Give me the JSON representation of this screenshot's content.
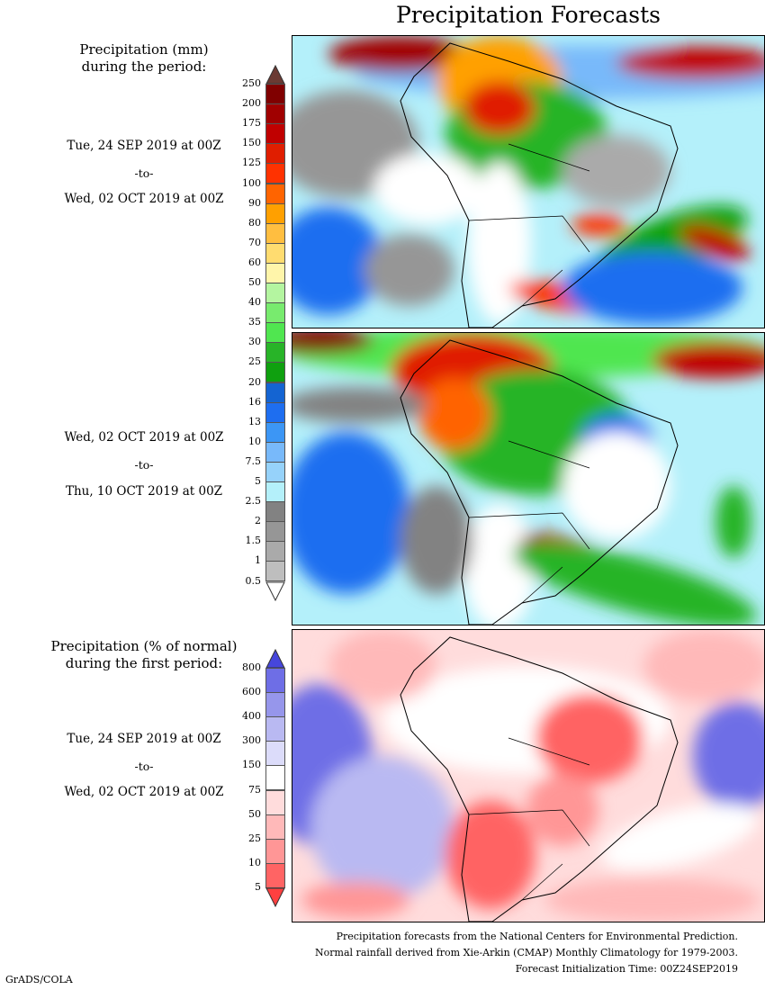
{
  "title": "Precipitation Forecasts",
  "mm_legend": {
    "heading": [
      "Precipitation (mm)",
      "during the period:"
    ],
    "labels": [
      "250",
      "200",
      "175",
      "150",
      "125",
      "100",
      "90",
      "80",
      "70",
      "60",
      "50",
      "40",
      "35",
      "30",
      "25",
      "20",
      "16",
      "13",
      "10",
      "7.5",
      "5",
      "2.5",
      "2",
      "1.5",
      "1",
      "0.5"
    ],
    "colors": [
      "#800000",
      "#a00000",
      "#c00000",
      "#e01e00",
      "#ff3200",
      "#ff6400",
      "#ffa000",
      "#ffbe40",
      "#ffdc70",
      "#fff5aa",
      "#b4f5a0",
      "#78eb6e",
      "#50e650",
      "#28b428",
      "#0fa00f",
      "#1464d2",
      "#1e6ef0",
      "#3c96f5",
      "#78b9fa",
      "#96d2fa",
      "#b4f0fa",
      "#828282",
      "#969696",
      "#aaaaaa",
      "#bebebe"
    ],
    "top_arrow_color": "#6b3a33",
    "bottom_arrow_color": "#ffffff"
  },
  "pct_legend": {
    "heading": [
      "Precipitation (% of normal)",
      "during the first period:"
    ],
    "labels": [
      "800",
      "600",
      "400",
      "300",
      "150",
      "75",
      "50",
      "25",
      "10",
      "5"
    ],
    "colors": [
      "#6e6ee6",
      "#9696eb",
      "#b9b9f2",
      "#dcdcfa",
      "#ffffff",
      "#ffdcdc",
      "#ffb9b9",
      "#ff9696",
      "#ff6464"
    ],
    "top_arrow_color": "#4646dc",
    "bottom_arrow_color": "#ff4040"
  },
  "periods": [
    {
      "start": "Tue, 24 SEP 2019 at 00Z",
      "sep": "-to-",
      "end": "Wed, 02 OCT 2019 at 00Z"
    },
    {
      "start": "Wed, 02 OCT 2019 at 00Z",
      "sep": "-to-",
      "end": "Thu, 10 OCT 2019 at 00Z"
    },
    {
      "start": "Tue, 24 SEP 2019 at 00Z",
      "sep": "-to-",
      "end": "Wed, 02 OCT 2019 at 00Z"
    }
  ],
  "footer": {
    "line1": "Precipitation forecasts from the National Centers for Environmental Prediction.",
    "line2": "Normal rainfall derived from Xie-Arkin (CMAP) Monthly Climatology for 1979-2003.",
    "line3": "Forecast Initialization Time: 00Z24SEP2019"
  },
  "credit": "GrADS/COLA"
}
